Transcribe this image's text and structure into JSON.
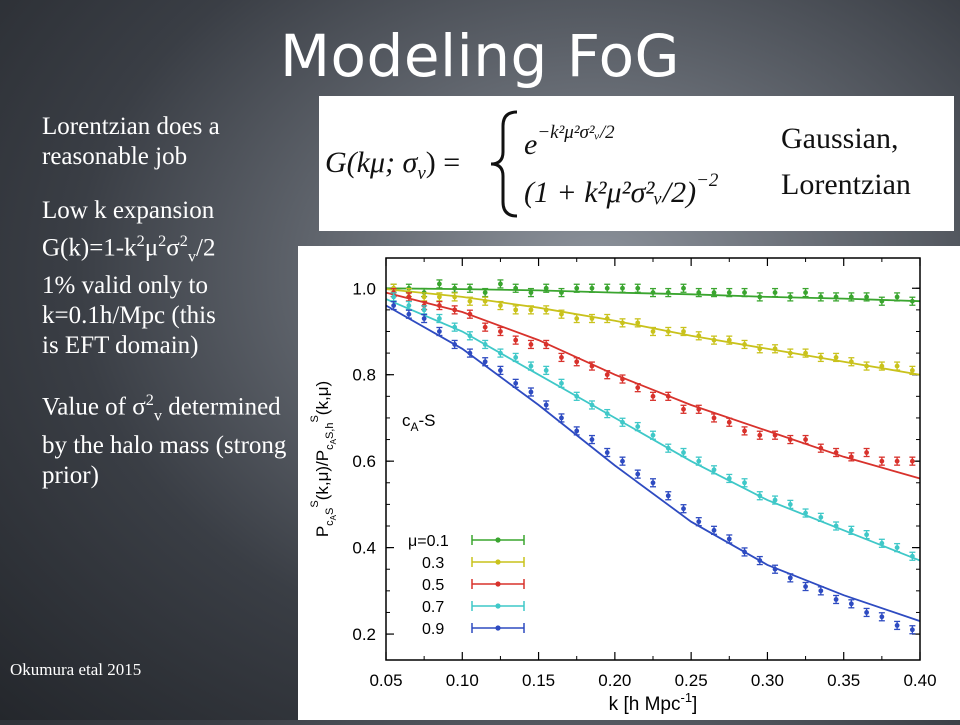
{
  "slide": {
    "title": "Modeling FoG",
    "credit": "Okumura etal 2015",
    "text": {
      "p1": "Lorentzian does a reasonable job",
      "p2_l1": "Low k expansion",
      "p2_l2_prefix": "G(k)=1-k",
      "p2_l2_suffix": "/2",
      "p2_l3": "1% valid only to",
      "p2_l4": "k=0.1h/Mpc (this",
      "p2_l5": "is EFT domain)",
      "p3_prefix": "Value of ",
      "p3_rest": "determined by the halo mass (strong prior)"
    }
  },
  "equation": {
    "lhs": "G(kμ; σ",
    "lhs_sub": "v",
    "lhs_close": ") =",
    "gauss_label": "Gaussian,",
    "lorentz_label": "Lorentzian"
  },
  "chart_data": {
    "type": "scatter",
    "xlabel": "k [h Mpc",
    "xlabel_sup": "-1",
    "xlabel_close": "]",
    "ylabel": "P^S_{c_A S}(k,μ)/P^S_{c_A S,h}(k,μ)",
    "annotation": "c_A-S",
    "xlim": [
      0.05,
      0.4
    ],
    "ylim": [
      0.14,
      1.07
    ],
    "xticks": [
      "0.05",
      "0.10",
      "0.15",
      "0.20",
      "0.25",
      "0.30",
      "0.35",
      "0.40"
    ],
    "yticks": [
      "0.2",
      "0.4",
      "0.6",
      "0.8",
      "1.0"
    ],
    "legend_position": "bottom-left",
    "legend_prefix": "μ=",
    "series": [
      {
        "name": "0.1",
        "color": "#3aa52f",
        "points": [
          [
            0.055,
            1.0
          ],
          [
            0.065,
            1.0
          ],
          [
            0.075,
            0.99
          ],
          [
            0.085,
            1.01
          ],
          [
            0.095,
            1.0
          ],
          [
            0.105,
            1.0
          ],
          [
            0.115,
            0.99
          ],
          [
            0.125,
            1.01
          ],
          [
            0.135,
            1.0
          ],
          [
            0.145,
            0.99
          ],
          [
            0.155,
            1.0
          ],
          [
            0.165,
            0.99
          ],
          [
            0.175,
            1.0
          ],
          [
            0.185,
            1.0
          ],
          [
            0.195,
            1.0
          ],
          [
            0.205,
            1.0
          ],
          [
            0.215,
            1.0
          ],
          [
            0.225,
            0.99
          ],
          [
            0.235,
            0.99
          ],
          [
            0.245,
            1.0
          ],
          [
            0.255,
            0.99
          ],
          [
            0.265,
            0.99
          ],
          [
            0.275,
            0.99
          ],
          [
            0.285,
            0.99
          ],
          [
            0.295,
            0.98
          ],
          [
            0.305,
            0.99
          ],
          [
            0.315,
            0.98
          ],
          [
            0.325,
            0.99
          ],
          [
            0.335,
            0.98
          ],
          [
            0.345,
            0.98
          ],
          [
            0.355,
            0.98
          ],
          [
            0.365,
            0.98
          ],
          [
            0.375,
            0.97
          ],
          [
            0.385,
            0.98
          ],
          [
            0.395,
            0.97
          ]
        ],
        "curve": [
          [
            0.05,
            1.0
          ],
          [
            0.1,
            0.998
          ],
          [
            0.15,
            0.995
          ],
          [
            0.2,
            0.99
          ],
          [
            0.25,
            0.986
          ],
          [
            0.3,
            0.98
          ],
          [
            0.35,
            0.976
          ],
          [
            0.4,
            0.97
          ]
        ]
      },
      {
        "name": "0.3",
        "color": "#c9c21c",
        "points": [
          [
            0.055,
            1.0
          ],
          [
            0.065,
            0.99
          ],
          [
            0.075,
            0.98
          ],
          [
            0.085,
            0.98
          ],
          [
            0.095,
            0.98
          ],
          [
            0.105,
            0.97
          ],
          [
            0.115,
            0.97
          ],
          [
            0.125,
            0.96
          ],
          [
            0.135,
            0.95
          ],
          [
            0.145,
            0.95
          ],
          [
            0.155,
            0.95
          ],
          [
            0.165,
            0.94
          ],
          [
            0.175,
            0.93
          ],
          [
            0.185,
            0.93
          ],
          [
            0.195,
            0.93
          ],
          [
            0.205,
            0.92
          ],
          [
            0.215,
            0.92
          ],
          [
            0.225,
            0.9
          ],
          [
            0.235,
            0.9
          ],
          [
            0.245,
            0.9
          ],
          [
            0.255,
            0.89
          ],
          [
            0.265,
            0.88
          ],
          [
            0.275,
            0.88
          ],
          [
            0.285,
            0.87
          ],
          [
            0.295,
            0.86
          ],
          [
            0.305,
            0.86
          ],
          [
            0.315,
            0.85
          ],
          [
            0.325,
            0.85
          ],
          [
            0.335,
            0.84
          ],
          [
            0.345,
            0.84
          ],
          [
            0.355,
            0.83
          ],
          [
            0.365,
            0.82
          ],
          [
            0.375,
            0.82
          ],
          [
            0.385,
            0.82
          ],
          [
            0.395,
            0.81
          ]
        ],
        "curve": [
          [
            0.05,
            0.998
          ],
          [
            0.1,
            0.98
          ],
          [
            0.15,
            0.955
          ],
          [
            0.2,
            0.925
          ],
          [
            0.25,
            0.89
          ],
          [
            0.3,
            0.86
          ],
          [
            0.35,
            0.83
          ],
          [
            0.4,
            0.8
          ]
        ]
      },
      {
        "name": "0.5",
        "color": "#d8322c",
        "points": [
          [
            0.055,
            0.99
          ],
          [
            0.065,
            0.98
          ],
          [
            0.075,
            0.96
          ],
          [
            0.085,
            0.96
          ],
          [
            0.095,
            0.95
          ],
          [
            0.105,
            0.94
          ],
          [
            0.115,
            0.91
          ],
          [
            0.125,
            0.9
          ],
          [
            0.135,
            0.88
          ],
          [
            0.145,
            0.87
          ],
          [
            0.155,
            0.87
          ],
          [
            0.165,
            0.84
          ],
          [
            0.175,
            0.83
          ],
          [
            0.185,
            0.82
          ],
          [
            0.195,
            0.8
          ],
          [
            0.205,
            0.79
          ],
          [
            0.215,
            0.77
          ],
          [
            0.225,
            0.75
          ],
          [
            0.235,
            0.75
          ],
          [
            0.245,
            0.72
          ],
          [
            0.255,
            0.72
          ],
          [
            0.265,
            0.7
          ],
          [
            0.275,
            0.69
          ],
          [
            0.285,
            0.67
          ],
          [
            0.295,
            0.66
          ],
          [
            0.305,
            0.66
          ],
          [
            0.315,
            0.65
          ],
          [
            0.325,
            0.65
          ],
          [
            0.335,
            0.63
          ],
          [
            0.345,
            0.62
          ],
          [
            0.355,
            0.61
          ],
          [
            0.365,
            0.62
          ],
          [
            0.375,
            0.6
          ],
          [
            0.385,
            0.6
          ],
          [
            0.395,
            0.6
          ]
        ],
        "curve": [
          [
            0.05,
            0.99
          ],
          [
            0.1,
            0.945
          ],
          [
            0.15,
            0.88
          ],
          [
            0.2,
            0.8
          ],
          [
            0.25,
            0.73
          ],
          [
            0.3,
            0.67
          ],
          [
            0.35,
            0.61
          ],
          [
            0.4,
            0.56
          ]
        ]
      },
      {
        "name": "0.7",
        "color": "#3fc8c8",
        "points": [
          [
            0.055,
            0.98
          ],
          [
            0.065,
            0.96
          ],
          [
            0.075,
            0.95
          ],
          [
            0.085,
            0.93
          ],
          [
            0.095,
            0.91
          ],
          [
            0.105,
            0.89
          ],
          [
            0.115,
            0.87
          ],
          [
            0.125,
            0.85
          ],
          [
            0.135,
            0.84
          ],
          [
            0.145,
            0.82
          ],
          [
            0.155,
            0.81
          ],
          [
            0.165,
            0.78
          ],
          [
            0.175,
            0.75
          ],
          [
            0.185,
            0.73
          ],
          [
            0.195,
            0.71
          ],
          [
            0.205,
            0.69
          ],
          [
            0.215,
            0.68
          ],
          [
            0.225,
            0.66
          ],
          [
            0.235,
            0.63
          ],
          [
            0.245,
            0.62
          ],
          [
            0.255,
            0.6
          ],
          [
            0.265,
            0.58
          ],
          [
            0.275,
            0.56
          ],
          [
            0.285,
            0.55
          ],
          [
            0.295,
            0.52
          ],
          [
            0.305,
            0.51
          ],
          [
            0.315,
            0.5
          ],
          [
            0.325,
            0.48
          ],
          [
            0.335,
            0.47
          ],
          [
            0.345,
            0.45
          ],
          [
            0.355,
            0.44
          ],
          [
            0.365,
            0.43
          ],
          [
            0.375,
            0.41
          ],
          [
            0.385,
            0.4
          ],
          [
            0.395,
            0.38
          ]
        ],
        "curve": [
          [
            0.05,
            0.975
          ],
          [
            0.1,
            0.9
          ],
          [
            0.15,
            0.8
          ],
          [
            0.2,
            0.7
          ],
          [
            0.25,
            0.6
          ],
          [
            0.3,
            0.51
          ],
          [
            0.35,
            0.44
          ],
          [
            0.4,
            0.37
          ]
        ]
      },
      {
        "name": "0.9",
        "color": "#2e4bc1",
        "points": [
          [
            0.055,
            0.96
          ],
          [
            0.065,
            0.94
          ],
          [
            0.075,
            0.93
          ],
          [
            0.085,
            0.9
          ],
          [
            0.095,
            0.87
          ],
          [
            0.105,
            0.85
          ],
          [
            0.115,
            0.83
          ],
          [
            0.125,
            0.81
          ],
          [
            0.135,
            0.78
          ],
          [
            0.145,
            0.76
          ],
          [
            0.155,
            0.73
          ],
          [
            0.165,
            0.7
          ],
          [
            0.175,
            0.67
          ],
          [
            0.185,
            0.65
          ],
          [
            0.195,
            0.62
          ],
          [
            0.205,
            0.6
          ],
          [
            0.215,
            0.57
          ],
          [
            0.225,
            0.55
          ],
          [
            0.235,
            0.52
          ],
          [
            0.245,
            0.49
          ],
          [
            0.255,
            0.46
          ],
          [
            0.265,
            0.44
          ],
          [
            0.275,
            0.42
          ],
          [
            0.285,
            0.39
          ],
          [
            0.295,
            0.37
          ],
          [
            0.305,
            0.35
          ],
          [
            0.315,
            0.33
          ],
          [
            0.325,
            0.31
          ],
          [
            0.335,
            0.3
          ],
          [
            0.345,
            0.28
          ],
          [
            0.355,
            0.27
          ],
          [
            0.365,
            0.25
          ],
          [
            0.375,
            0.24
          ],
          [
            0.385,
            0.22
          ],
          [
            0.395,
            0.21
          ]
        ],
        "curve": [
          [
            0.05,
            0.96
          ],
          [
            0.1,
            0.86
          ],
          [
            0.15,
            0.73
          ],
          [
            0.2,
            0.59
          ],
          [
            0.25,
            0.46
          ],
          [
            0.3,
            0.36
          ],
          [
            0.35,
            0.29
          ],
          [
            0.4,
            0.23
          ]
        ]
      }
    ]
  }
}
